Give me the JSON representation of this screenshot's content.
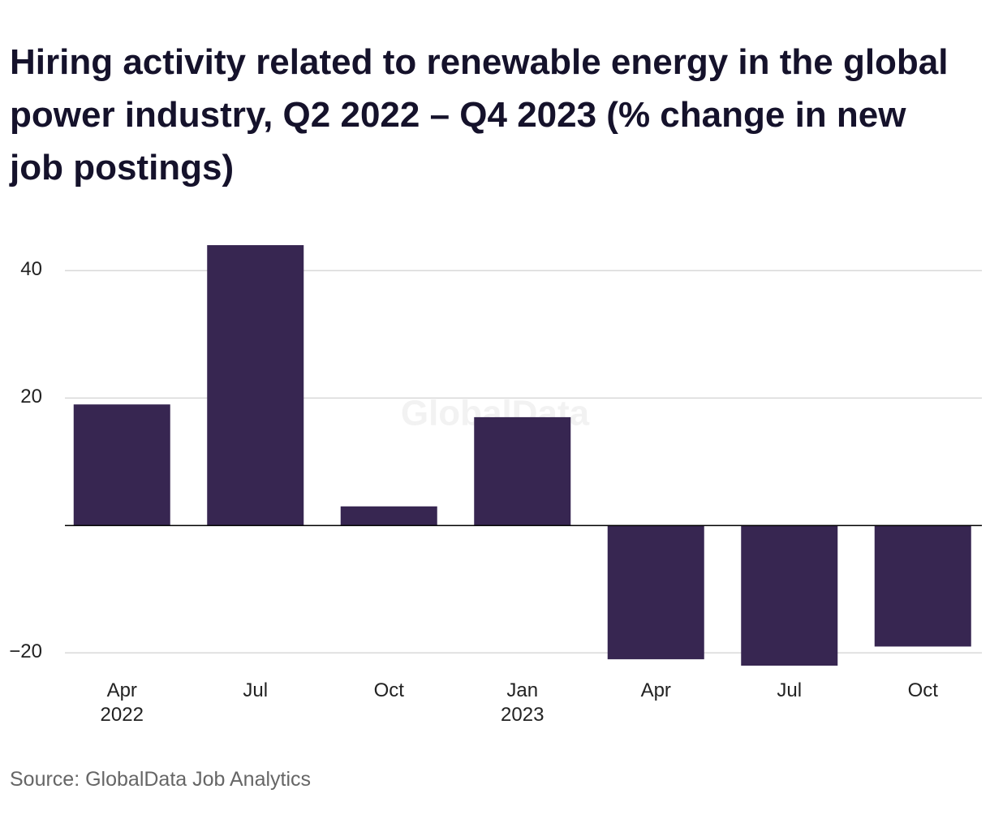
{
  "chart_data": {
    "type": "bar",
    "title": "Hiring activity related to renewable energy in the global power industry, Q2 2022 – Q4 2023 (% change in new job postings)",
    "categories": [
      "Apr\n2022",
      "Jul",
      "Oct",
      "Jan\n2023",
      "Apr",
      "Jul",
      "Oct"
    ],
    "values": [
      19,
      44,
      3,
      17,
      -21,
      -22,
      -19
    ],
    "color": "#372651",
    "ylim": [
      -22,
      44
    ],
    "yticks": [
      {
        "value": -20,
        "label": "−20"
      },
      20,
      40
    ],
    "grid": true,
    "watermark": "GlobalData",
    "source": "Source: GlobalData Job Analytics"
  }
}
